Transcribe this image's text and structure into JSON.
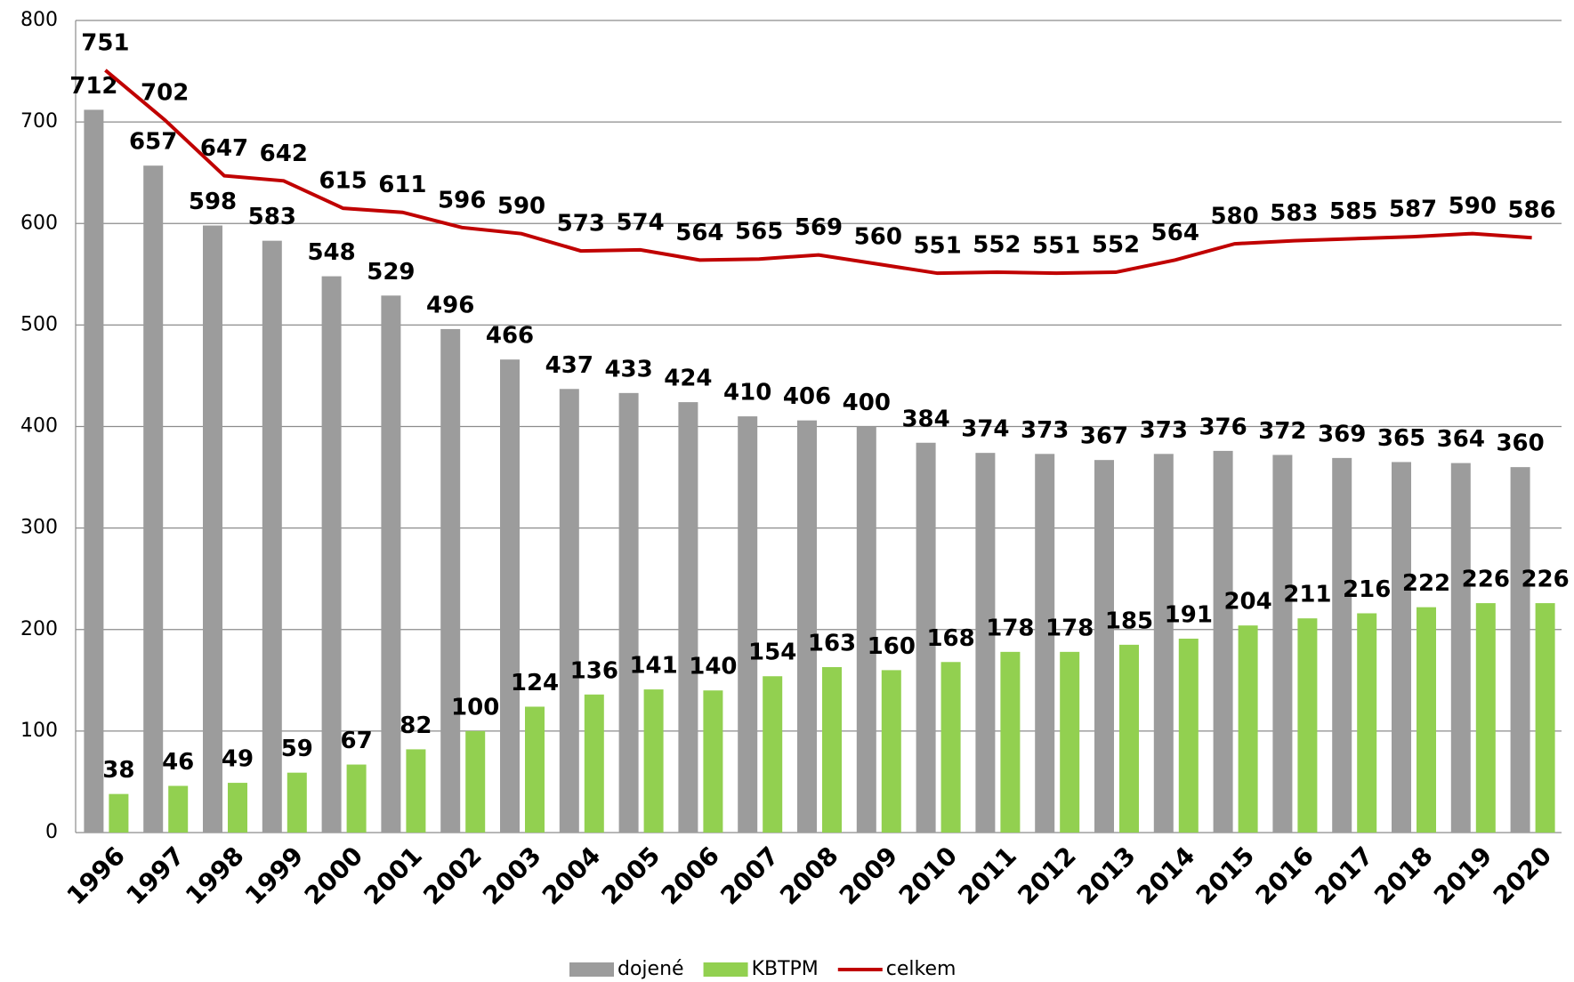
{
  "chart_data": {
    "type": "bar",
    "categories": [
      "1996",
      "1997",
      "1998",
      "1999",
      "2000",
      "2001",
      "2002",
      "2003",
      "2004",
      "2005",
      "2006",
      "2007",
      "2008",
      "2009",
      "2010",
      "2011",
      "2012",
      "2013",
      "2014",
      "2015",
      "2016",
      "2017",
      "2018",
      "2019",
      "2020"
    ],
    "series": [
      {
        "name": "dojené",
        "type": "bar",
        "color": "#9c9c9c",
        "values": [
          712,
          657,
          598,
          583,
          548,
          529,
          496,
          466,
          437,
          433,
          424,
          410,
          406,
          400,
          384,
          374,
          373,
          367,
          373,
          376,
          372,
          369,
          365,
          364,
          360
        ]
      },
      {
        "name": "KBTPM",
        "type": "bar",
        "color": "#92d050",
        "values": [
          38,
          46,
          49,
          59,
          67,
          82,
          100,
          124,
          136,
          141,
          140,
          154,
          163,
          160,
          168,
          178,
          178,
          185,
          191,
          204,
          211,
          216,
          222,
          226,
          226
        ]
      },
      {
        "name": "celkem",
        "type": "line",
        "color": "#c00000",
        "values": [
          751,
          702,
          647,
          642,
          615,
          611,
          596,
          590,
          573,
          574,
          564,
          565,
          569,
          560,
          551,
          552,
          551,
          552,
          564,
          580,
          583,
          585,
          587,
          590,
          586
        ]
      }
    ],
    "ylim": [
      0,
      800
    ],
    "yticks": [
      0,
      100,
      200,
      300,
      400,
      500,
      600,
      700,
      800
    ],
    "grid": true,
    "legend": "bottom"
  }
}
